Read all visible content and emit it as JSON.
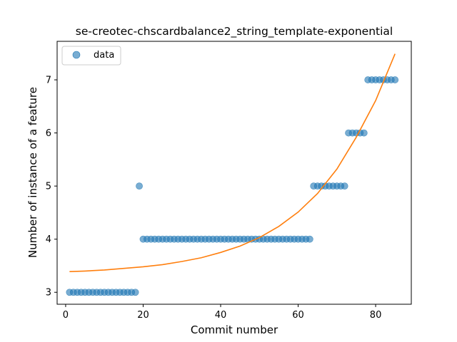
{
  "chart_data": {
    "type": "scatter",
    "title": "se-creotec-chscardbalance2_string_template-exponential",
    "xlabel": "Commit number",
    "ylabel": "Number of instance of a feature",
    "xlim": [
      -2.2,
      89.2
    ],
    "ylim": [
      2.775,
      7.725
    ],
    "x_ticks": [
      0,
      20,
      40,
      60,
      80
    ],
    "y_ticks": [
      3,
      4,
      5,
      6,
      7
    ],
    "grid": false,
    "legend": {
      "position": "top-left",
      "entries": [
        "data"
      ]
    },
    "colors": {
      "points": "#1f77b4",
      "fit": "#ff7f0e"
    },
    "series": [
      {
        "name": "data",
        "kind": "scatter",
        "points": [
          [
            1,
            3
          ],
          [
            2,
            3
          ],
          [
            3,
            3
          ],
          [
            4,
            3
          ],
          [
            5,
            3
          ],
          [
            6,
            3
          ],
          [
            7,
            3
          ],
          [
            8,
            3
          ],
          [
            9,
            3
          ],
          [
            10,
            3
          ],
          [
            11,
            3
          ],
          [
            12,
            3
          ],
          [
            13,
            3
          ],
          [
            14,
            3
          ],
          [
            15,
            3
          ],
          [
            16,
            3
          ],
          [
            17,
            3
          ],
          [
            18,
            3
          ],
          [
            19,
            5
          ],
          [
            20,
            4
          ],
          [
            21,
            4
          ],
          [
            22,
            4
          ],
          [
            23,
            4
          ],
          [
            24,
            4
          ],
          [
            25,
            4
          ],
          [
            26,
            4
          ],
          [
            27,
            4
          ],
          [
            28,
            4
          ],
          [
            29,
            4
          ],
          [
            30,
            4
          ],
          [
            31,
            4
          ],
          [
            32,
            4
          ],
          [
            33,
            4
          ],
          [
            34,
            4
          ],
          [
            35,
            4
          ],
          [
            36,
            4
          ],
          [
            37,
            4
          ],
          [
            38,
            4
          ],
          [
            39,
            4
          ],
          [
            40,
            4
          ],
          [
            41,
            4
          ],
          [
            42,
            4
          ],
          [
            43,
            4
          ],
          [
            44,
            4
          ],
          [
            45,
            4
          ],
          [
            46,
            4
          ],
          [
            47,
            4
          ],
          [
            48,
            4
          ],
          [
            49,
            4
          ],
          [
            50,
            4
          ],
          [
            51,
            4
          ],
          [
            52,
            4
          ],
          [
            53,
            4
          ],
          [
            54,
            4
          ],
          [
            55,
            4
          ],
          [
            56,
            4
          ],
          [
            57,
            4
          ],
          [
            58,
            4
          ],
          [
            59,
            4
          ],
          [
            60,
            4
          ],
          [
            61,
            4
          ],
          [
            62,
            4
          ],
          [
            63,
            4
          ],
          [
            64,
            5
          ],
          [
            65,
            5
          ],
          [
            66,
            5
          ],
          [
            67,
            5
          ],
          [
            68,
            5
          ],
          [
            69,
            5
          ],
          [
            70,
            5
          ],
          [
            71,
            5
          ],
          [
            72,
            5
          ],
          [
            73,
            6
          ],
          [
            74,
            6
          ],
          [
            75,
            6
          ],
          [
            76,
            6
          ],
          [
            77,
            6
          ],
          [
            78,
            7
          ],
          [
            79,
            7
          ],
          [
            80,
            7
          ],
          [
            81,
            7
          ],
          [
            82,
            7
          ],
          [
            83,
            7
          ],
          [
            84,
            7
          ],
          [
            85,
            7
          ]
        ]
      },
      {
        "kind": "line",
        "points": [
          [
            1,
            3.39
          ],
          [
            5,
            3.4
          ],
          [
            10,
            3.42
          ],
          [
            15,
            3.45
          ],
          [
            20,
            3.48
          ],
          [
            25,
            3.52
          ],
          [
            30,
            3.58
          ],
          [
            35,
            3.65
          ],
          [
            40,
            3.75
          ],
          [
            45,
            3.87
          ],
          [
            50,
            4.03
          ],
          [
            55,
            4.24
          ],
          [
            60,
            4.51
          ],
          [
            65,
            4.86
          ],
          [
            70,
            5.32
          ],
          [
            75,
            5.92
          ],
          [
            80,
            6.61
          ],
          [
            85,
            7.49
          ]
        ]
      }
    ]
  }
}
